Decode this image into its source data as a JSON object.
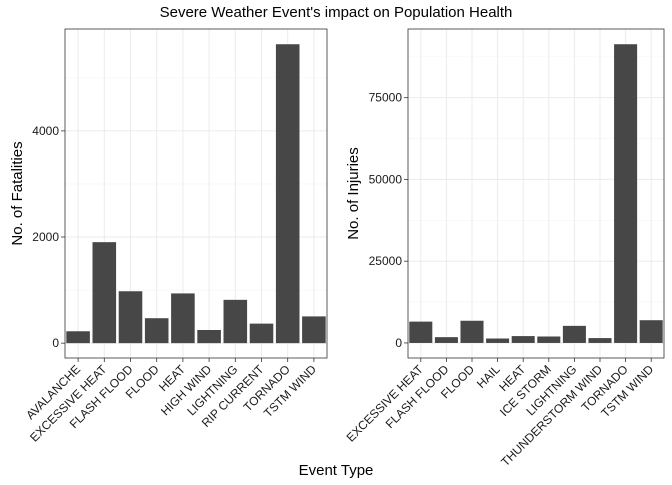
{
  "figure": {
    "title": "Severe Weather Event's impact on Population Health",
    "xlabel": "Event Type"
  },
  "colors": {
    "bar": "#474747",
    "panel_border": "#333333",
    "grid_major": "#ebebeb",
    "grid_minor": "#f5f5f5",
    "background": "#ffffff"
  },
  "chart_data": [
    {
      "type": "bar",
      "ylabel": "No. of Fatalities",
      "categories": [
        "AVALANCHE",
        "EXCESSIVE HEAT",
        "FLASH FLOOD",
        "FLOOD",
        "HEAT",
        "HIGH WIND",
        "LIGHTNING",
        "RIP CURRENT",
        "TORNADO",
        "TSTM WIND"
      ],
      "values": [
        224,
        1903,
        978,
        470,
        937,
        248,
        816,
        368,
        5633,
        504
      ],
      "ylim": [
        -280,
        5920
      ],
      "yticks": [
        0,
        2000,
        4000
      ],
      "ytick_labels": [
        "0",
        "2000",
        "4000"
      ],
      "grid": true
    },
    {
      "type": "bar",
      "ylabel": "No. of Injuries",
      "categories": [
        "EXCESSIVE HEAT",
        "FLASH FLOOD",
        "FLOOD",
        "HAIL",
        "HEAT",
        "ICE STORM",
        "LIGHTNING",
        "THUNDERSTORM WIND",
        "TORNADO",
        "TSTM WIND"
      ],
      "values": [
        6525,
        1777,
        6789,
        1361,
        2100,
        1975,
        5230,
        1488,
        91346,
        6957
      ],
      "ylim": [
        -4600,
        96000
      ],
      "yticks": [
        0,
        25000,
        50000,
        75000
      ],
      "ytick_labels": [
        "0",
        "25000",
        "50000",
        "75000"
      ],
      "grid": true
    }
  ]
}
